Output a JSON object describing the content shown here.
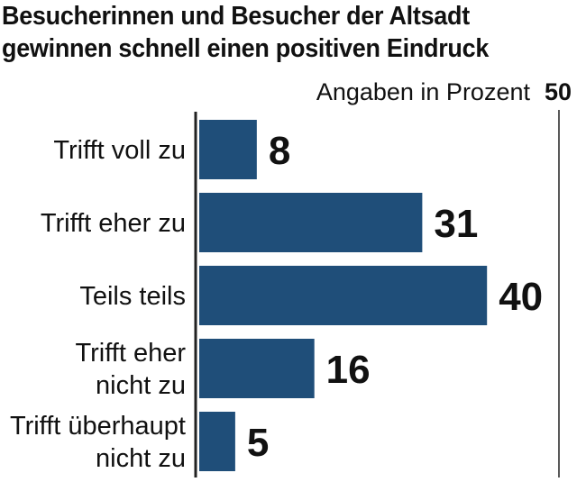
{
  "chart_data": {
    "type": "bar",
    "orientation": "horizontal",
    "title_lines": [
      "Besucherinnen und Besucher der Altsadt",
      "gewinnen schnell einen positiven Eindruck"
    ],
    "unit_label": "Angaben in Prozent",
    "x_tick_label": "50",
    "xlim": [
      0,
      50
    ],
    "grid": false,
    "bar_color": "#1f4e79",
    "categories": [
      [
        "Trifft voll zu"
      ],
      [
        "Trifft eher zu"
      ],
      [
        "Teils teils"
      ],
      [
        "Trifft eher",
        "nicht zu"
      ],
      [
        "Trifft überhaupt",
        "nicht zu"
      ]
    ],
    "values": [
      8,
      31,
      40,
      16,
      5
    ],
    "value_labels": [
      "8",
      "31",
      "40",
      "16",
      "5"
    ]
  }
}
